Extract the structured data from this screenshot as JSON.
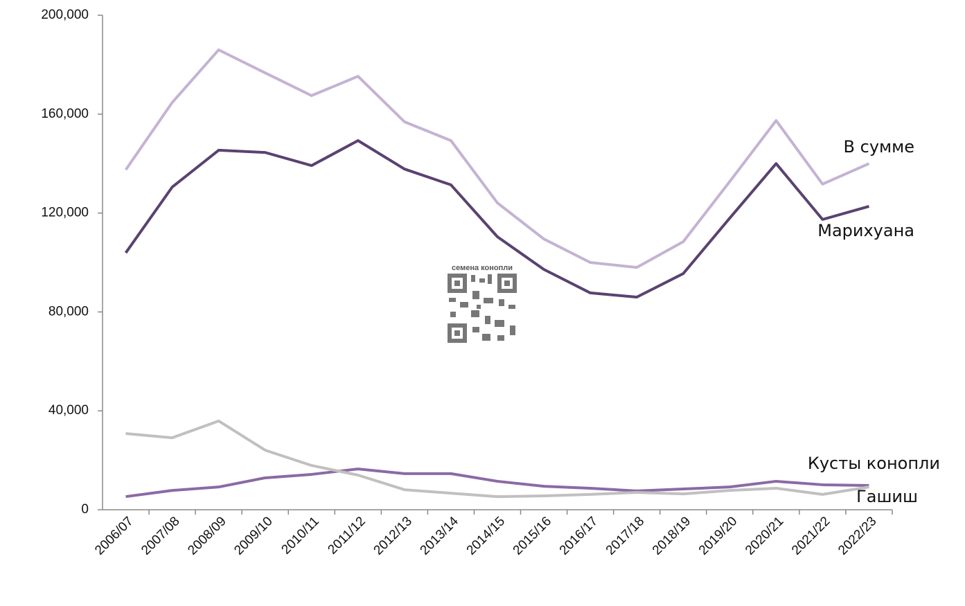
{
  "chart_data": {
    "type": "line",
    "categories": [
      "2006/07",
      "2007/08",
      "2008/09",
      "2009/10",
      "2010/11",
      "2011/12",
      "2012/13",
      "2013/14",
      "2014/15",
      "2015/16",
      "2016/17",
      "2017/18",
      "2018/19",
      "2019/20",
      "2020/21",
      "2021/22",
      "2022/23"
    ],
    "series": [
      {
        "name": "В сумме",
        "color": "#c4b3d3",
        "values": [
          137500,
          164700,
          186000,
          176700,
          167500,
          175300,
          156900,
          149300,
          124100,
          109500,
          100000,
          98000,
          108400,
          132700,
          157400,
          131700,
          140000
        ]
      },
      {
        "name": "Марихуана",
        "color": "#5a4270",
        "values": [
          103900,
          130500,
          145400,
          144500,
          139200,
          149300,
          137800,
          131400,
          110400,
          97200,
          87700,
          86000,
          95500,
          117900,
          140000,
          117400,
          122700
        ]
      },
      {
        "name": "Кусты конопли",
        "color": "#8a6aa5",
        "values": [
          5300,
          7800,
          9200,
          12900,
          14300,
          16500,
          14600,
          14600,
          11500,
          9500,
          8700,
          7600,
          8400,
          9200,
          11500,
          10100,
          9800
        ]
      },
      {
        "name": "Гашиш",
        "color": "#c0c0c0",
        "values": [
          30800,
          29100,
          35900,
          24100,
          17900,
          14000,
          8100,
          6700,
          5300,
          5600,
          6200,
          7000,
          6400,
          7800,
          8700,
          6200,
          9200
        ]
      }
    ],
    "ylim": [
      0,
      200000
    ],
    "yticks": [
      0,
      {
        "value": 40000,
        "label": "40,000"
      },
      {
        "value": 80000,
        "label": "80,000"
      },
      {
        "value": 120000,
        "label": "120,000"
      },
      {
        "value": 160000,
        "label": "160,000"
      },
      {
        "value": 200000,
        "label": "200,000"
      }
    ],
    "grid": false,
    "watermark": "семена конопли"
  }
}
